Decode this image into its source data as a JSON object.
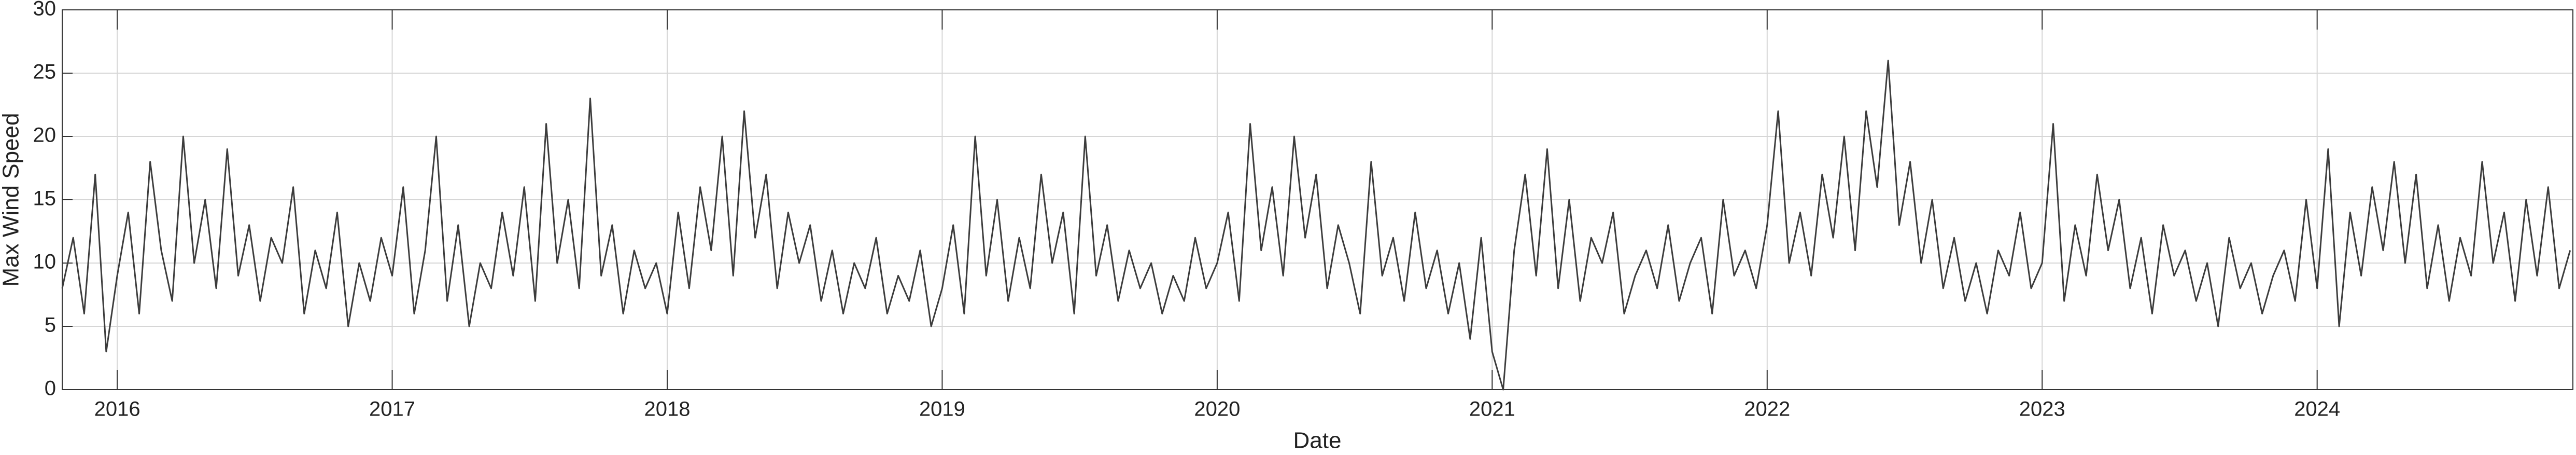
{
  "chart_data": {
    "type": "line",
    "x_label": "Date",
    "y_label": "Max Wind Speed",
    "xlim": [
      2015.8,
      2024.93
    ],
    "xticks": [
      2016,
      2017,
      2018,
      2019,
      2020,
      2021,
      2022,
      2023,
      2024
    ],
    "ylim": [
      0,
      30
    ],
    "yticks": [
      0,
      5,
      10,
      15,
      20,
      25,
      30
    ],
    "grid": true,
    "x": [
      2015.8,
      2015.84,
      2015.88,
      2015.92,
      2015.96,
      2016,
      2016.04,
      2016.08,
      2016.12,
      2016.16,
      2016.2,
      2016.24,
      2016.28,
      2016.32,
      2016.36,
      2016.4,
      2016.44,
      2016.48,
      2016.52,
      2016.56,
      2016.6,
      2016.64,
      2016.68,
      2016.72,
      2016.76,
      2016.8,
      2016.84,
      2016.88,
      2016.92,
      2016.96,
      2017,
      2017.04,
      2017.08,
      2017.12,
      2017.16,
      2017.2,
      2017.24,
      2017.28,
      2017.32,
      2017.36,
      2017.4,
      2017.44,
      2017.48,
      2017.52,
      2017.56,
      2017.6,
      2017.64,
      2017.68,
      2017.72,
      2017.76,
      2017.8,
      2017.84,
      2017.88,
      2017.92,
      2017.96,
      2018,
      2018.04,
      2018.08,
      2018.12,
      2018.16,
      2018.2,
      2018.24,
      2018.28,
      2018.32,
      2018.36,
      2018.4,
      2018.44,
      2018.48,
      2018.52,
      2018.56,
      2018.6,
      2018.64,
      2018.68,
      2018.72,
      2018.76,
      2018.8,
      2018.84,
      2018.88,
      2018.92,
      2018.96,
      2019,
      2019.04,
      2019.08,
      2019.12,
      2019.16,
      2019.2,
      2019.24,
      2019.28,
      2019.32,
      2019.36,
      2019.4,
      2019.44,
      2019.48,
      2019.52,
      2019.56,
      2019.6,
      2019.64,
      2019.68,
      2019.72,
      2019.76,
      2019.8,
      2019.84,
      2019.88,
      2019.92,
      2019.96,
      2020,
      2020.04,
      2020.08,
      2020.12,
      2020.16,
      2020.2,
      2020.24,
      2020.28,
      2020.32,
      2020.36,
      2020.4,
      2020.44,
      2020.48,
      2020.52,
      2020.56,
      2020.6,
      2020.64,
      2020.68,
      2020.72,
      2020.76,
      2020.8,
      2020.84,
      2020.88,
      2020.92,
      2020.96,
      2021,
      2021.04,
      2021.08,
      2021.12,
      2021.16,
      2021.2,
      2021.24,
      2021.28,
      2021.32,
      2021.36,
      2021.4,
      2021.44,
      2021.48,
      2021.52,
      2021.56,
      2021.6,
      2021.64,
      2021.68,
      2021.72,
      2021.76,
      2021.8,
      2021.84,
      2021.88,
      2021.92,
      2021.96,
      2022,
      2022.04,
      2022.08,
      2022.12,
      2022.16,
      2022.2,
      2022.24,
      2022.28,
      2022.32,
      2022.36,
      2022.4,
      2022.44,
      2022.48,
      2022.52,
      2022.56,
      2022.6,
      2022.64,
      2022.68,
      2022.72,
      2022.76,
      2022.8,
      2022.84,
      2022.88,
      2022.92,
      2022.96,
      2023,
      2023.04,
      2023.08,
      2023.12,
      2023.16,
      2023.2,
      2023.24,
      2023.28,
      2023.32,
      2023.36,
      2023.4,
      2023.44,
      2023.48,
      2023.52,
      2023.56,
      2023.6,
      2023.64,
      2023.68,
      2023.72,
      2023.76,
      2023.8,
      2023.84,
      2023.88,
      2023.92,
      2023.96,
      2024,
      2024.04,
      2024.08,
      2024.12,
      2024.16,
      2024.2,
      2024.24,
      2024.28,
      2024.32,
      2024.36,
      2024.4,
      2024.44,
      2024.48,
      2024.52,
      2024.56,
      2024.6,
      2024.64,
      2024.68,
      2024.72,
      2024.76,
      2024.8,
      2024.84,
      2024.88,
      2024.92
    ],
    "series": [
      {
        "color": "#3c3c3c",
        "values": [
          8,
          12,
          6,
          17,
          3,
          9,
          14,
          6,
          18,
          11,
          7,
          20,
          10,
          15,
          8,
          19,
          9,
          13,
          7,
          12,
          10,
          16,
          6,
          11,
          8,
          14,
          5,
          10,
          7,
          12,
          9,
          16,
          6,
          11,
          20,
          7,
          13,
          5,
          10,
          8,
          14,
          9,
          16,
          7,
          21,
          10,
          15,
          8,
          23,
          9,
          13,
          6,
          11,
          8,
          10,
          6,
          14,
          8,
          16,
          11,
          20,
          9,
          22,
          12,
          17,
          8,
          14,
          10,
          13,
          7,
          11,
          6,
          10,
          8,
          12,
          6,
          9,
          7,
          11,
          5,
          8,
          13,
          6,
          20,
          9,
          15,
          7,
          12,
          8,
          17,
          10,
          14,
          6,
          20,
          9,
          13,
          7,
          11,
          8,
          10,
          6,
          9,
          7,
          12,
          8,
          10,
          14,
          7,
          21,
          11,
          16,
          9,
          20,
          12,
          17,
          8,
          13,
          10,
          6,
          18,
          9,
          12,
          7,
          14,
          8,
          11,
          6,
          10,
          4,
          12,
          3,
          0,
          11,
          17,
          9,
          19,
          8,
          15,
          7,
          12,
          10,
          14,
          6,
          9,
          11,
          8,
          13,
          7,
          10,
          12,
          6,
          15,
          9,
          11,
          8,
          13,
          22,
          10,
          14,
          9,
          17,
          12,
          20,
          11,
          22,
          16,
          26,
          13,
          18,
          10,
          15,
          8,
          12,
          7,
          10,
          6,
          11,
          9,
          14,
          8,
          10,
          21,
          7,
          13,
          9,
          17,
          11,
          15,
          8,
          12,
          6,
          13,
          9,
          11,
          7,
          10,
          5,
          12,
          8,
          10,
          6,
          9,
          11,
          7,
          15,
          8,
          19,
          5,
          14,
          9,
          16,
          11,
          18,
          10,
          17,
          8,
          13,
          7,
          12,
          9,
          18,
          10,
          14,
          7,
          15,
          9,
          16,
          8,
          11
        ]
      }
    ]
  }
}
